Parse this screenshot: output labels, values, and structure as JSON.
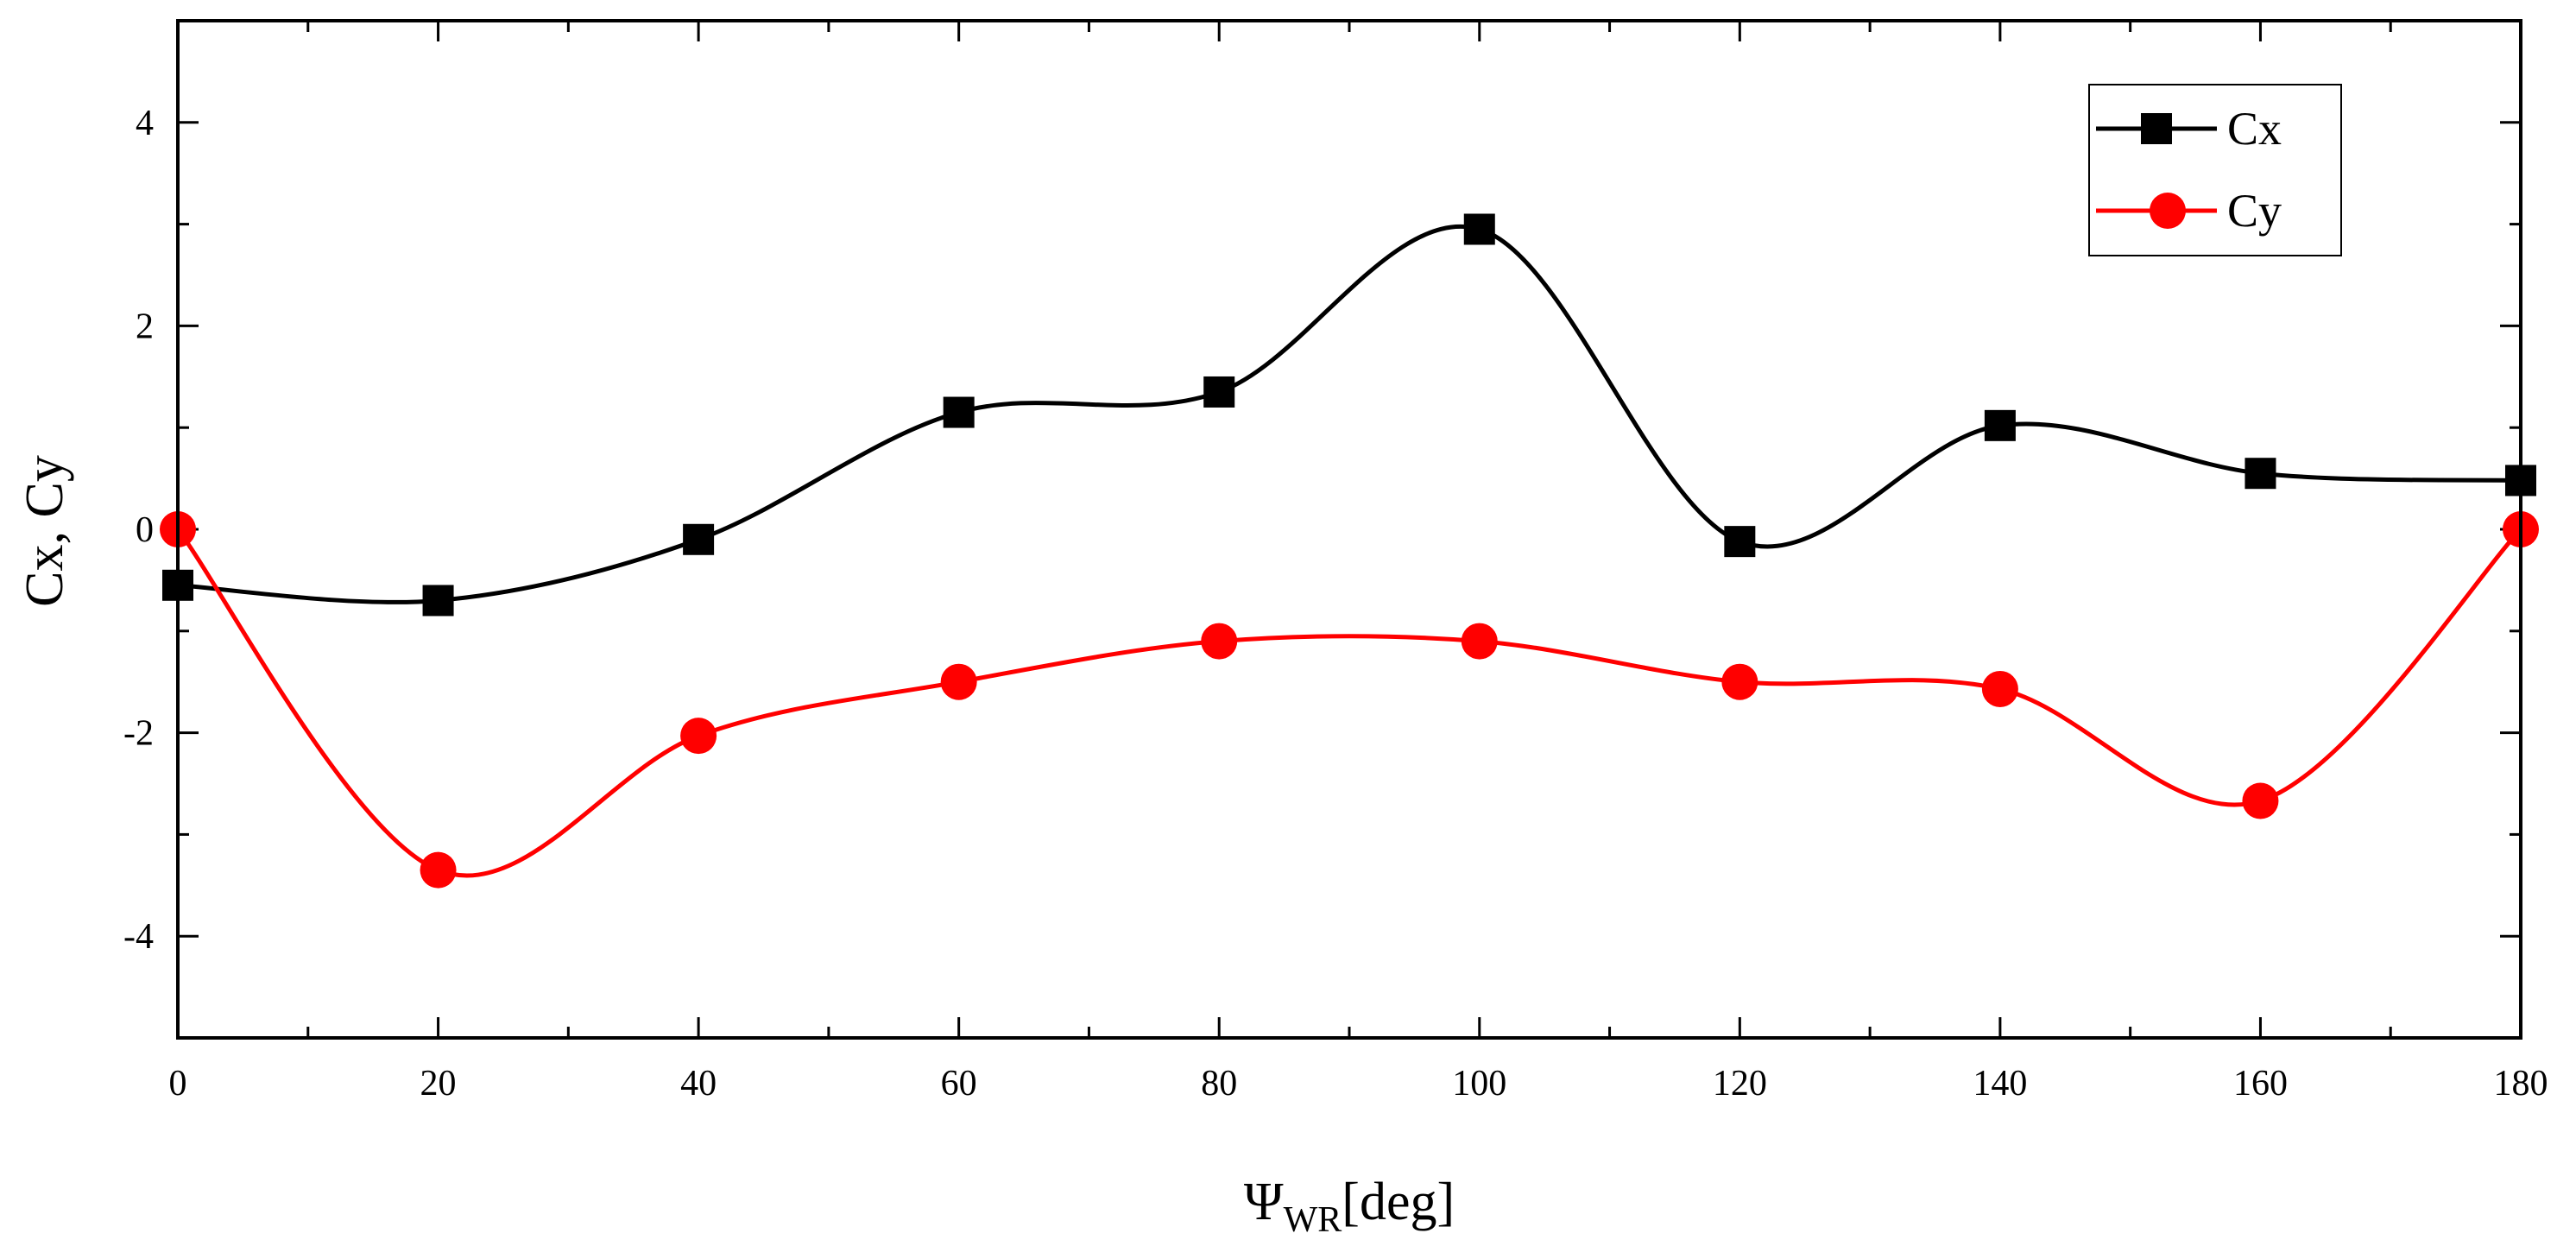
{
  "chart_data": {
    "type": "line",
    "title": "",
    "xlabel": {
      "main": "Ψ",
      "sub": "WR",
      "rest": "[deg]"
    },
    "ylabel": "Cx, Cy",
    "xlim": [
      0,
      180
    ],
    "ylim": [
      -5,
      5
    ],
    "xticks": [
      0,
      20,
      40,
      60,
      80,
      100,
      120,
      140,
      160,
      180
    ],
    "xminor": [
      10,
      30,
      50,
      70,
      90,
      110,
      130,
      150,
      170
    ],
    "yticks": [
      -4,
      -2,
      0,
      2,
      4
    ],
    "yminor": [
      -5,
      -3,
      -1,
      1,
      3,
      5
    ],
    "x": [
      0,
      20,
      40,
      60,
      80,
      100,
      120,
      140,
      160,
      180
    ],
    "series": [
      {
        "name": "Cx",
        "color": "#000000",
        "marker": "square",
        "values": [
          -0.55,
          -0.7,
          -0.1,
          1.15,
          1.35,
          2.95,
          -0.12,
          1.02,
          0.55,
          0.48
        ]
      },
      {
        "name": "Cy",
        "color": "#ff0000",
        "marker": "circle",
        "values": [
          0.0,
          -3.35,
          -2.03,
          -1.5,
          -1.1,
          -1.1,
          -1.5,
          -1.57,
          -2.67,
          0.0
        ]
      }
    ],
    "legend": "top-right",
    "grid": false
  }
}
